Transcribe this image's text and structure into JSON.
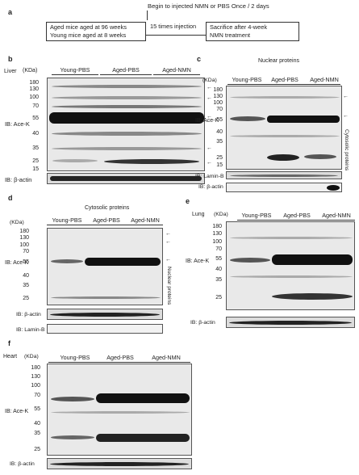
{
  "panel_a": {
    "letter": "a",
    "top_text": "Begin to injected NMN or PBS Once / 2 days",
    "box_left_line1": "Aged mice aged at 96 weeks",
    "box_left_line2": "Young mice aged at 8 weeks",
    "arrow_text": "15 times injection",
    "box_right_line1": "Sacrifice after 4-week",
    "box_right_line2": "NMN treatment"
  },
  "panel_b": {
    "letter": "b",
    "tissue": "Liver",
    "kda": "(KDa)",
    "groups": [
      "Young-PBS",
      "Aged-PBS",
      "Aged-NMN"
    ],
    "markers": [
      "180",
      "130",
      "100",
      "70",
      "55",
      "40",
      "35",
      "25",
      "15"
    ],
    "ib_main": "IB: Ace-K",
    "ib_control": "IB: β-actin"
  },
  "panel_c": {
    "letter": "c",
    "title": "Nuclear proteins",
    "kda": "(KDa)",
    "groups": [
      "Young-PBS",
      "Aged-PBS",
      "Aged-NMN"
    ],
    "markers": [
      "180",
      "130",
      "100",
      "70",
      "55",
      "40",
      "35",
      "25",
      "15"
    ],
    "ib_main": "IB: Ace-K",
    "side_label": "Cytosolic proteins",
    "ib_lamin": "IB: Lamin-B",
    "ib_control": "IB: β-actin"
  },
  "panel_d": {
    "letter": "d",
    "title": "Cytosolic proteins",
    "kda": "(KDa)",
    "groups": [
      "Young-PBS",
      "Aged-PBS",
      "Aged-NMN"
    ],
    "markers": [
      "180",
      "130",
      "100",
      "70",
      "55",
      "40",
      "35",
      "25"
    ],
    "ib_main": "IB: Ace-K",
    "side_label": "Nuclear proteins",
    "ib_control": "IB: β-actin",
    "ib_lamin": "IB: Lamin-B"
  },
  "panel_e": {
    "letter": "e",
    "tissue": "Lung",
    "kda": "(KDa)",
    "groups": [
      "Young-PBS",
      "Aged-PBS",
      "Aged-NMN"
    ],
    "markers": [
      "180",
      "130",
      "100",
      "70",
      "55",
      "40",
      "35",
      "25"
    ],
    "ib_main": "IB: Ace-K",
    "ib_control": "IB: β-actin"
  },
  "panel_f": {
    "letter": "f",
    "tissue": "Heart",
    "kda": "(KDa)",
    "groups": [
      "Young-PBS",
      "Aged-PBS",
      "Aged-NMN"
    ],
    "markers": [
      "180",
      "130",
      "100",
      "70",
      "55",
      "40",
      "35",
      "25"
    ],
    "ib_main": "IB: Ace-K",
    "ib_control": "IB: β-actin"
  }
}
